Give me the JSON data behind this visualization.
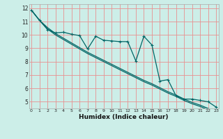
{
  "xlabel": "Humidex (Indice chaleur)",
  "background_color": "#cceee8",
  "grid_color": "#e89090",
  "line_color": "#006666",
  "x_values": [
    0,
    1,
    2,
    3,
    4,
    5,
    6,
    7,
    8,
    9,
    10,
    11,
    12,
    13,
    14,
    15,
    16,
    17,
    18,
    19,
    20,
    21,
    22,
    23
  ],
  "line_marker_y": [
    11.85,
    11.1,
    10.4,
    10.15,
    10.2,
    10.05,
    9.95,
    8.95,
    9.9,
    9.6,
    9.55,
    9.5,
    9.5,
    8.05,
    9.9,
    9.25,
    6.55,
    6.65,
    5.45,
    5.2,
    5.2,
    5.1,
    5.0,
    4.6
  ],
  "line_straight1_y": [
    11.85,
    11.1,
    10.55,
    10.1,
    9.75,
    9.4,
    9.05,
    8.7,
    8.4,
    8.1,
    7.8,
    7.5,
    7.2,
    6.9,
    6.6,
    6.35,
    6.05,
    5.75,
    5.5,
    5.2,
    4.95,
    4.75,
    4.5,
    4.3
  ],
  "line_straight2_y": [
    11.85,
    11.1,
    10.45,
    10.0,
    9.65,
    9.3,
    8.95,
    8.6,
    8.3,
    8.0,
    7.7,
    7.4,
    7.1,
    6.8,
    6.5,
    6.25,
    5.95,
    5.65,
    5.4,
    5.1,
    4.85,
    4.65,
    4.4,
    4.2
  ],
  "ylim": [
    4.5,
    12.3
  ],
  "xlim": [
    -0.3,
    23.3
  ],
  "yticks": [
    5,
    6,
    7,
    8,
    9,
    10,
    11,
    12
  ],
  "xticks": [
    0,
    1,
    2,
    3,
    4,
    5,
    6,
    7,
    8,
    9,
    10,
    11,
    12,
    13,
    14,
    15,
    16,
    17,
    18,
    19,
    20,
    21,
    22,
    23
  ]
}
